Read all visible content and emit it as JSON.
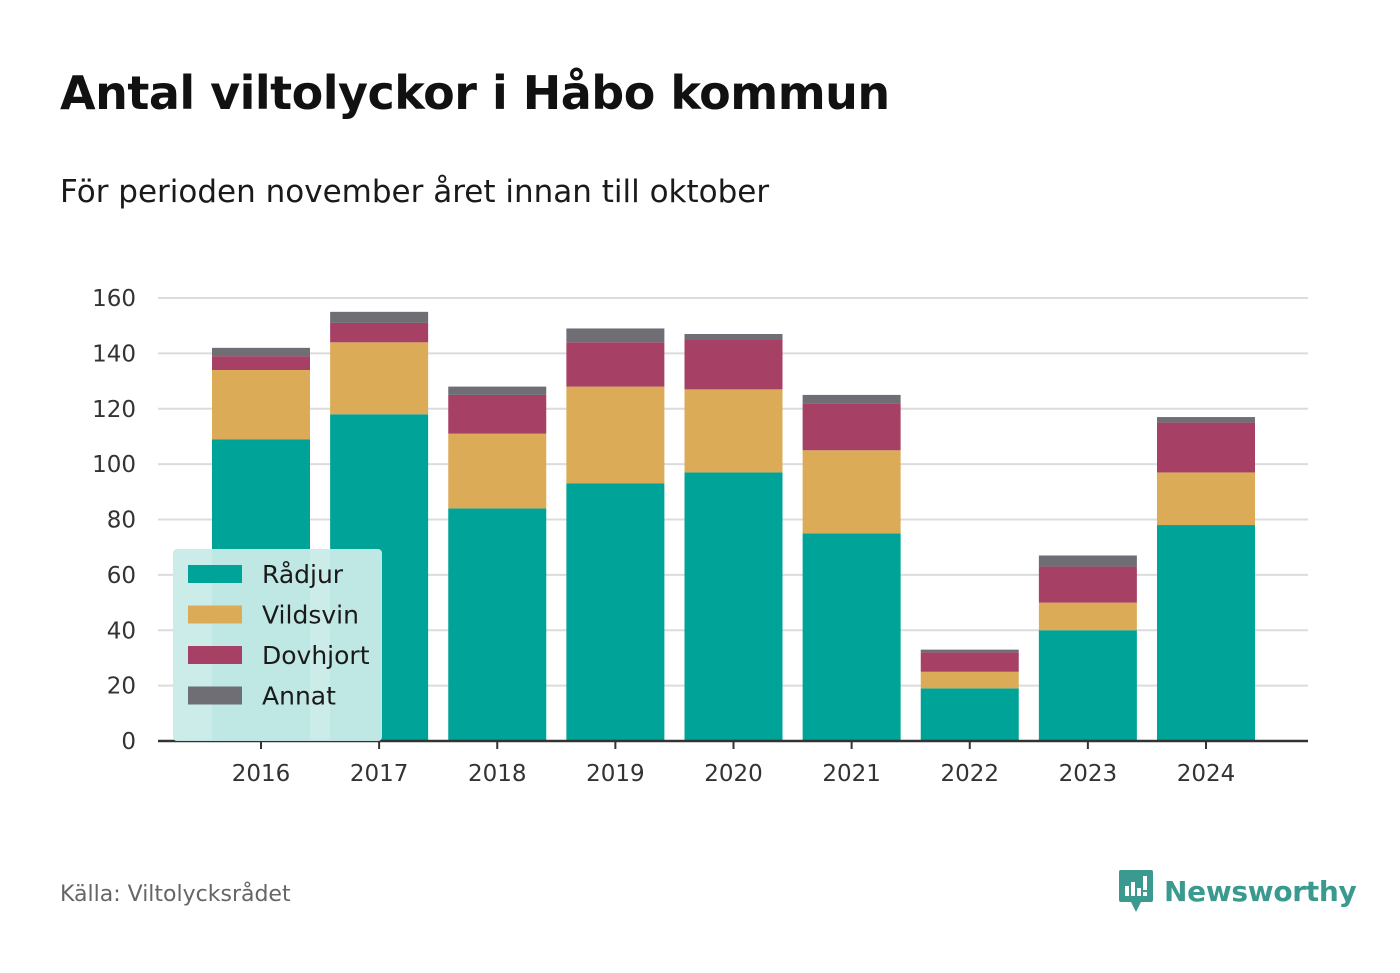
{
  "title": "Antal viltolyckor i Håbo kommun",
  "subtitle": "För perioden november året innan till oktober",
  "source": "Källa: Viltolycksrådet",
  "brand": {
    "name": "Newsworthy",
    "color": "#3a9a8f",
    "icon": "newsworthy-logo-icon"
  },
  "chart_data": {
    "type": "bar",
    "stacked": true,
    "categories": [
      "2016",
      "2017",
      "2018",
      "2019",
      "2020",
      "2021",
      "2022",
      "2023",
      "2024"
    ],
    "series": [
      {
        "name": "Rådjur",
        "color": "#00a398",
        "values": [
          109,
          118,
          84,
          93,
          97,
          75,
          19,
          40,
          78
        ]
      },
      {
        "name": "Vildsvin",
        "color": "#dbab58",
        "values": [
          25,
          26,
          27,
          35,
          30,
          30,
          6,
          10,
          19
        ]
      },
      {
        "name": "Dovhjort",
        "color": "#a64065",
        "values": [
          5,
          7,
          14,
          16,
          18,
          17,
          7,
          13,
          18
        ]
      },
      {
        "name": "Annat",
        "color": "#6f6e74",
        "values": [
          3,
          4,
          3,
          5,
          2,
          3,
          1,
          4,
          2
        ]
      }
    ],
    "yticks": [
      0,
      20,
      40,
      60,
      80,
      100,
      120,
      140,
      160
    ],
    "ylim": [
      0,
      160
    ],
    "grid": true,
    "legend_position": "bottom-left"
  }
}
